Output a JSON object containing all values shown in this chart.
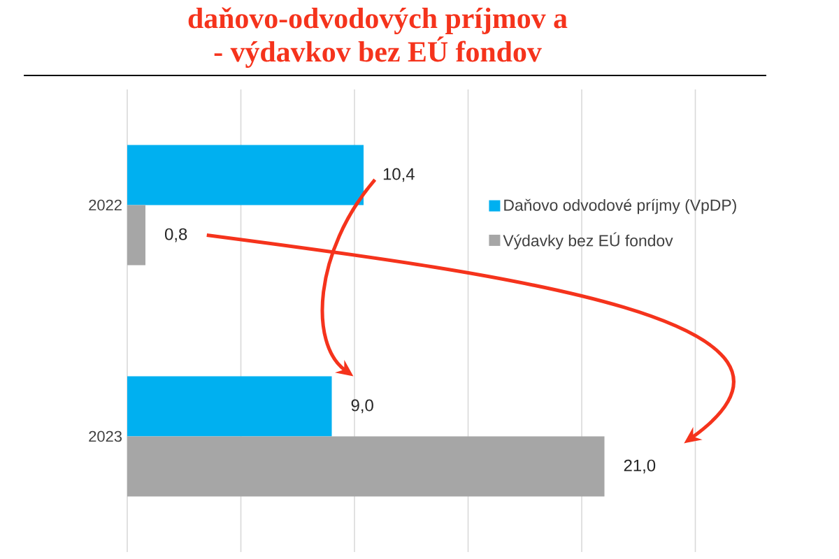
{
  "chart_data": {
    "type": "bar",
    "orientation": "horizontal",
    "title": "daňovo-odvodových príjmov a",
    "subtitle": "- výdavkov bez EÚ fondov",
    "categories": [
      "2022",
      "2023"
    ],
    "series": [
      {
        "name": "Daňovo odvodové príjmy (VpDP)",
        "color": "#00b0f0",
        "values": [
          10.4,
          9.0
        ],
        "value_labels": [
          "10,4",
          "9,0"
        ]
      },
      {
        "name": "Výdavky bez EÚ fondov",
        "color": "#a6a6a6",
        "values": [
          0.8,
          21.0
        ],
        "value_labels": [
          "0,8",
          "21,0"
        ]
      }
    ],
    "xlim": [
      0,
      28
    ],
    "xticks": [
      {
        "value": 0,
        "label": null
      },
      {
        "value": 5,
        "label": null
      },
      {
        "value": 10,
        "label": null
      },
      {
        "value": 15,
        "label": null
      },
      {
        "value": 20,
        "label": null
      },
      {
        "value": 25,
        "label": null
      }
    ],
    "tick_labels": "y",
    "grid": "x",
    "legend": "right"
  }
}
